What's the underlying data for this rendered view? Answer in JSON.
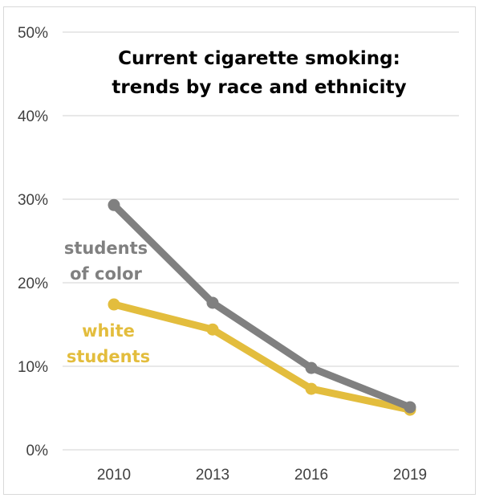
{
  "chart_data": {
    "type": "line",
    "title_lines": [
      "Current cigarette smoking:",
      "trends by race and ethnicity"
    ],
    "categories": [
      "2010",
      "2013",
      "2016",
      "2019"
    ],
    "ylim": [
      0,
      50
    ],
    "yticks": [
      "0%",
      "10%",
      "20%",
      "30%",
      "40%",
      "50%"
    ],
    "grid": true,
    "series": [
      {
        "name_lines": [
          "students",
          "of color"
        ],
        "color": "#808080",
        "values": [
          29.3,
          17.6,
          9.8,
          5.1
        ]
      },
      {
        "name_lines": [
          "white",
          "students"
        ],
        "color": "#e3bd3d",
        "values": [
          17.4,
          14.4,
          7.3,
          4.8
        ]
      }
    ]
  }
}
